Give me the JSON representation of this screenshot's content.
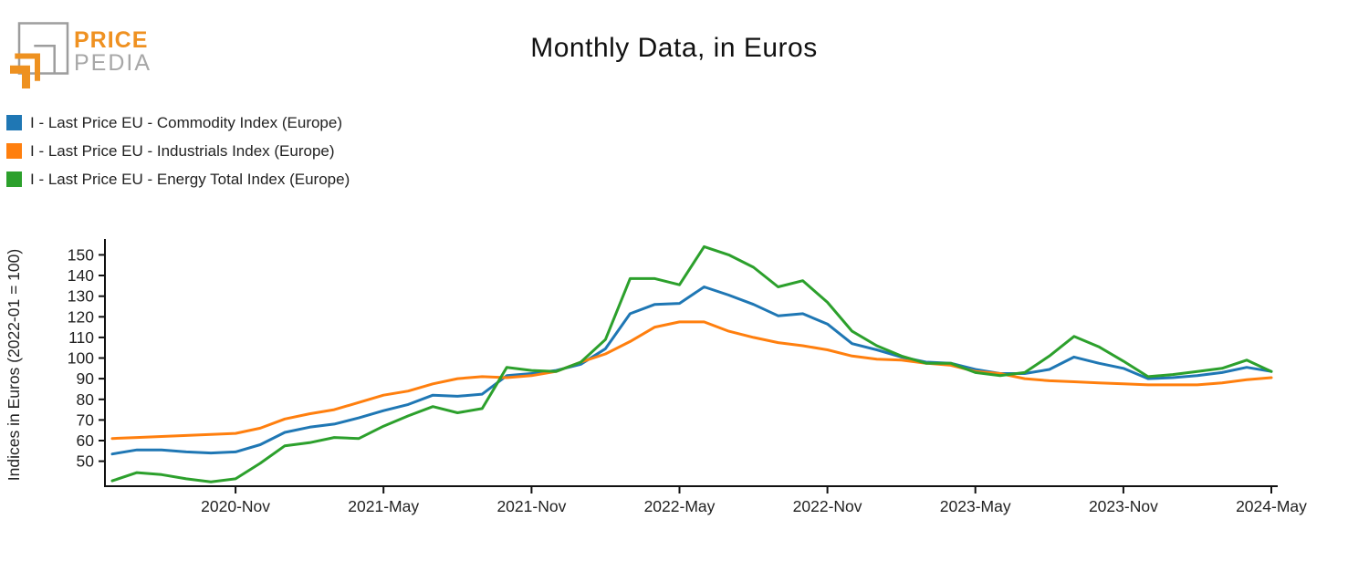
{
  "header": {
    "logo_line1": "PRICE",
    "logo_line2": "PEDIA"
  },
  "legend": [
    {
      "id": "commodity",
      "label": "I - Last Price EU - Commodity Index (Europe)",
      "color": "#1f77b4"
    },
    {
      "id": "industrials",
      "label": "I - Last Price EU - Industrials Index (Europe)",
      "color": "#ff7f0e"
    },
    {
      "id": "energy",
      "label": "I - Last Price EU - Energy Total Index (Europe)",
      "color": "#2ca02c"
    }
  ],
  "chart_data": {
    "type": "line",
    "title": "Monthly Data, in Euros",
    "xlabel": "",
    "ylabel": "Indices in Euros (2022-01 = 100)",
    "grid": false,
    "legend_position": "top-left",
    "ylim": [
      37.9,
      157.7
    ],
    "yticks": [
      50,
      60,
      70,
      80,
      90,
      100,
      110,
      120,
      130,
      140,
      150
    ],
    "xticks": [
      {
        "index": 5,
        "label": "2020-Nov"
      },
      {
        "index": 11,
        "label": "2021-May"
      },
      {
        "index": 17,
        "label": "2021-Nov"
      },
      {
        "index": 23,
        "label": "2022-May"
      },
      {
        "index": 29,
        "label": "2022-Nov"
      },
      {
        "index": 35,
        "label": "2023-May"
      },
      {
        "index": 41,
        "label": "2023-Nov"
      },
      {
        "index": 47,
        "label": "2024-May"
      }
    ],
    "categories": [
      "2020-06",
      "2020-07",
      "2020-08",
      "2020-09",
      "2020-10",
      "2020-11",
      "2020-12",
      "2021-01",
      "2021-02",
      "2021-03",
      "2021-04",
      "2021-05",
      "2021-06",
      "2021-07",
      "2021-08",
      "2021-09",
      "2021-10",
      "2021-11",
      "2021-12",
      "2022-01",
      "2022-02",
      "2022-03",
      "2022-04",
      "2022-05",
      "2022-06",
      "2022-07",
      "2022-08",
      "2022-09",
      "2022-10",
      "2022-11",
      "2022-12",
      "2023-01",
      "2023-02",
      "2023-03",
      "2023-04",
      "2023-05",
      "2023-06",
      "2023-07",
      "2023-08",
      "2023-09",
      "2023-10",
      "2023-11",
      "2023-12",
      "2024-01",
      "2024-02",
      "2024-03",
      "2024-04",
      "2024-05"
    ],
    "series": [
      {
        "id": "commodity",
        "name": "I - Last Price EU - Commodity Index (Europe)",
        "color": "#1f77b4",
        "values": [
          53.5,
          55.5,
          55.5,
          54.5,
          54,
          54.5,
          58,
          64,
          66.5,
          68,
          71,
          74.5,
          77.5,
          82,
          81.5,
          82.5,
          91.5,
          92.5,
          94,
          97,
          104.5,
          121.5,
          126,
          126.5,
          134.5,
          130.5,
          126,
          120.5,
          121.5,
          116.5,
          107,
          104,
          100.5,
          98,
          97.5,
          94.5,
          92.5,
          92.5,
          94.5,
          100.5,
          97.5,
          95,
          90,
          90.5,
          91.5,
          93,
          95.5,
          93.5
        ]
      },
      {
        "id": "industrials",
        "name": "I - Last Price EU - Industrials Index (Europe)",
        "color": "#ff7f0e",
        "values": [
          61,
          61.5,
          62,
          62.5,
          63,
          63.5,
          66,
          70.5,
          73,
          75,
          78.5,
          82,
          84,
          87.5,
          90,
          91,
          90.5,
          91.5,
          93.5,
          98,
          102,
          108,
          115,
          117.5,
          117.5,
          113,
          110,
          107.5,
          106,
          104,
          101,
          99.5,
          99,
          97.5,
          96.5,
          93.5,
          92.5,
          90,
          89,
          88.5,
          88,
          87.5,
          87,
          87,
          87,
          88,
          89.5,
          90.5
        ]
      },
      {
        "id": "energy",
        "name": "I - Last Price EU - Energy Total Index (Europe)",
        "color": "#2ca02c",
        "values": [
          40.5,
          44.5,
          43.5,
          41.5,
          40,
          41.5,
          49,
          57.5,
          59,
          61.5,
          61,
          67,
          72,
          76.5,
          73.5,
          75.5,
          95.5,
          94,
          93.5,
          98,
          109,
          138.5,
          138.5,
          135.5,
          154,
          150,
          144,
          134.5,
          137.5,
          127,
          113,
          106,
          101,
          97.5,
          97.5,
          93,
          91.5,
          93,
          101,
          110.5,
          105.5,
          98.5,
          91,
          92,
          93.5,
          95,
          99,
          93.5
        ]
      }
    ],
    "colors": {
      "axis": "#111111",
      "tick_text": "#222222"
    }
  }
}
